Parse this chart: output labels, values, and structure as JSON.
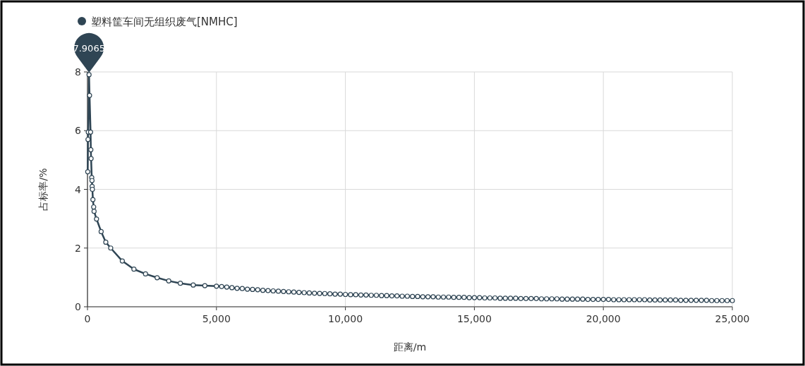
{
  "chart_data": {
    "type": "line",
    "xlabel": "距离/m",
    "ylabel": "占标率/%",
    "legend": "top left",
    "grid": true,
    "marker": "circle",
    "line_style": "solid",
    "xlim": [
      0,
      25000
    ],
    "xticks": [
      0,
      {
        "value": 5000,
        "label": "5,000"
      },
      {
        "value": 10000,
        "label": "10,000"
      },
      {
        "value": 15000,
        "label": "15,000"
      },
      {
        "value": 20000,
        "label": "20,000"
      },
      {
        "value": 25000,
        "label": "25,000"
      }
    ],
    "ylim": [
      0,
      8
    ],
    "yticks": [
      0,
      2,
      4,
      6,
      8
    ],
    "annotations": [
      {
        "text": "7.9065",
        "x": 60,
        "y": 7.9065
      }
    ],
    "series": [
      {
        "name": "塑料筐车间无组织废气[NMHC]",
        "color": "#2f4554",
        "x": [
          10,
          20,
          30,
          60,
          80,
          120,
          130,
          140,
          165,
          175,
          180,
          190,
          210,
          240,
          255,
          350,
          530,
          710,
          900,
          1350,
          1800,
          2250,
          2700,
          3150,
          3600,
          4100,
          4550,
          5000,
          5200,
          5400,
          5600,
          5800,
          6000,
          6200,
          6400,
          6600,
          6800,
          7000,
          7200,
          7400,
          7600,
          7800,
          8000,
          8200,
          8400,
          8600,
          8800,
          9000,
          9200,
          9400,
          9600,
          9800,
          10000,
          10200,
          10400,
          10600,
          10800,
          11000,
          11200,
          11400,
          11600,
          11800,
          12000,
          12200,
          12400,
          12600,
          12800,
          13000,
          13200,
          13400,
          13600,
          13800,
          14000,
          14200,
          14400,
          14600,
          14800,
          15000,
          15200,
          15400,
          15600,
          15800,
          16000,
          16200,
          16400,
          16600,
          16800,
          17000,
          17200,
          17400,
          17600,
          17800,
          18000,
          18200,
          18400,
          18600,
          18800,
          19000,
          19200,
          19400,
          19600,
          19800,
          20000,
          20200,
          20400,
          20600,
          20800,
          21000,
          21200,
          21400,
          21600,
          21800,
          22000,
          22200,
          22400,
          22600,
          22800,
          23000,
          23200,
          23400,
          23600,
          23800,
          24000,
          24200,
          24400,
          24600,
          24800,
          25000
        ],
        "values": [
          4.6,
          5.7,
          5.95,
          7.9065,
          7.2,
          5.95,
          5.35,
          5.05,
          4.4,
          4.3,
          4.1,
          4.0,
          3.65,
          3.4,
          3.25,
          2.99,
          2.56,
          2.2,
          2.0,
          1.56,
          1.28,
          1.12,
          0.99,
          0.88,
          0.8,
          0.74,
          0.72,
          0.7,
          0.69,
          0.67,
          0.65,
          0.63,
          0.62,
          0.6,
          0.59,
          0.58,
          0.56,
          0.55,
          0.54,
          0.53,
          0.52,
          0.51,
          0.5,
          0.49,
          0.48,
          0.47,
          0.46,
          0.455,
          0.45,
          0.44,
          0.43,
          0.43,
          0.42,
          0.41,
          0.41,
          0.4,
          0.4,
          0.39,
          0.39,
          0.38,
          0.38,
          0.37,
          0.37,
          0.36,
          0.36,
          0.35,
          0.35,
          0.34,
          0.34,
          0.34,
          0.33,
          0.33,
          0.33,
          0.32,
          0.32,
          0.32,
          0.31,
          0.31,
          0.31,
          0.3,
          0.3,
          0.3,
          0.29,
          0.29,
          0.29,
          0.29,
          0.28,
          0.28,
          0.28,
          0.28,
          0.27,
          0.27,
          0.27,
          0.27,
          0.26,
          0.26,
          0.26,
          0.26,
          0.26,
          0.25,
          0.25,
          0.25,
          0.25,
          0.25,
          0.24,
          0.24,
          0.24,
          0.24,
          0.24,
          0.24,
          0.24,
          0.23,
          0.23,
          0.23,
          0.23,
          0.23,
          0.23,
          0.22,
          0.22,
          0.22,
          0.22,
          0.22,
          0.22,
          0.21,
          0.21,
          0.21,
          0.21,
          0.21
        ]
      }
    ]
  }
}
